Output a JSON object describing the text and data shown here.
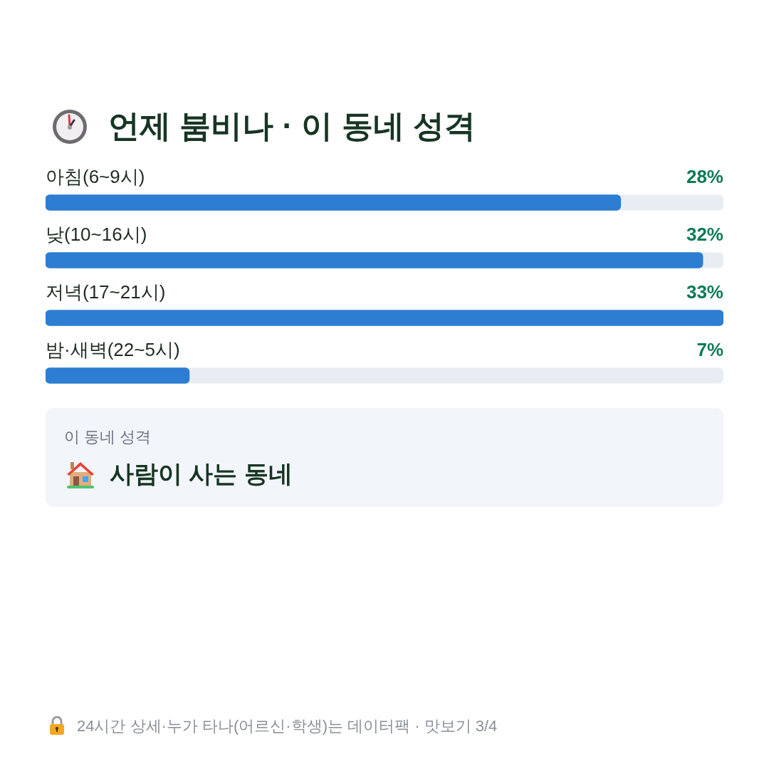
{
  "chart_data": {
    "type": "bar",
    "orientation": "horizontal",
    "title": "언제 붐비나 · 이 동네 성격",
    "categories": [
      "아침(6~9시)",
      "낮(10~16시)",
      "저녁(17~21시)",
      "밤·새벽(22~5시)"
    ],
    "values": [
      28,
      32,
      33,
      7
    ],
    "color": "#2d7dd2",
    "value_labels": [
      "28%",
      "32%",
      "33%",
      "7%"
    ],
    "xlim": [
      0,
      33
    ],
    "tick_labels": "y",
    "annotations": [
      "이 동네 성격",
      "사람이 사는 동네",
      "24시간 상세·누가 타나(어르신·학생)는 데이터팩 · 맛보기 3/4"
    ]
  }
}
